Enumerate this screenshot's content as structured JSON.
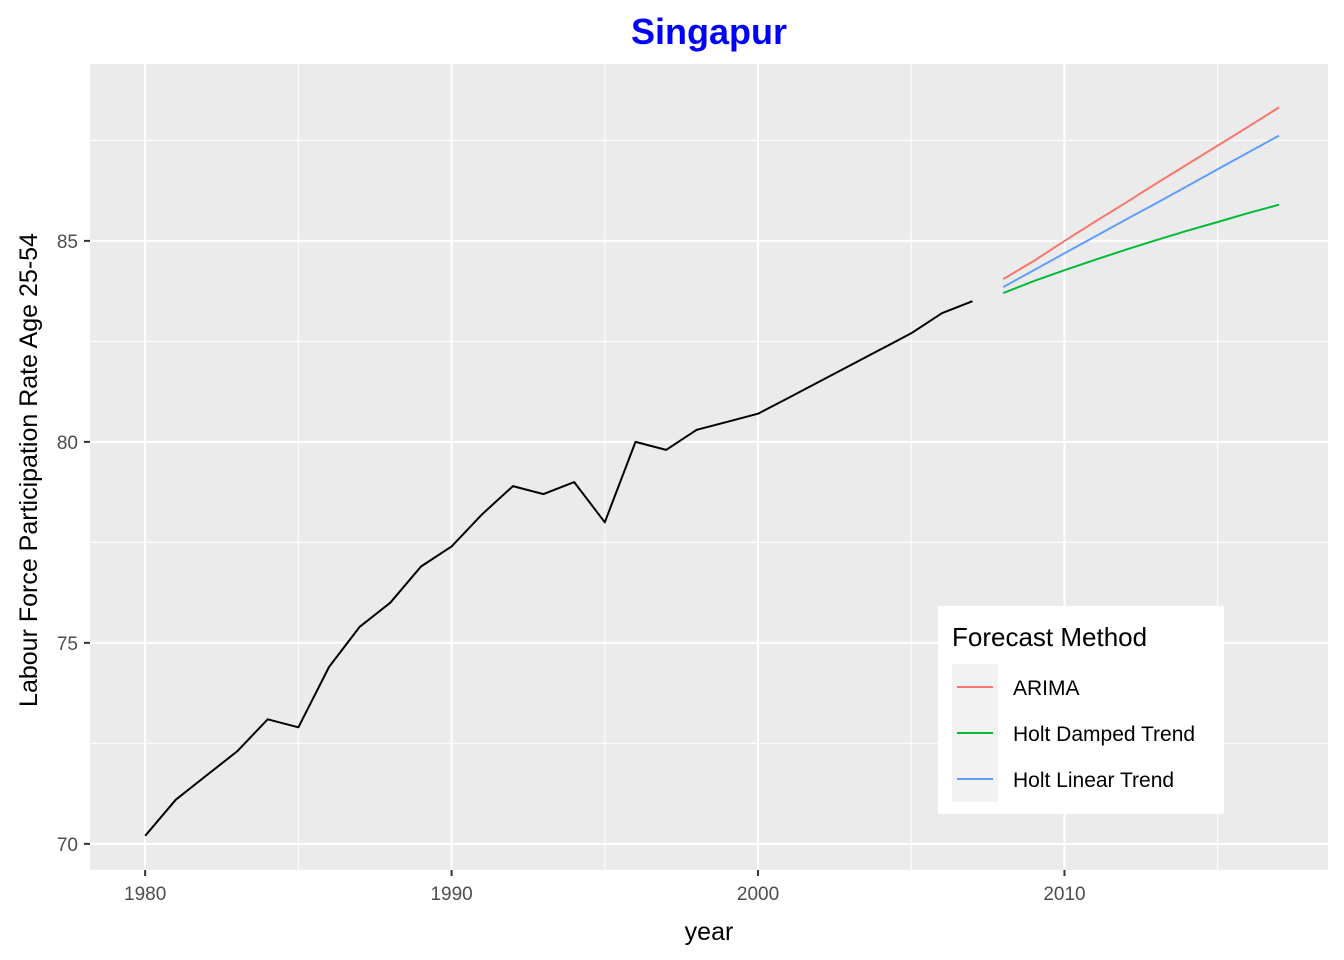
{
  "chart_data": {
    "type": "line",
    "title": "Singapur",
    "title_color": "#0000FF",
    "xlabel": "year",
    "ylabel": "Labour Force Participation Rate Age 25-54",
    "xlim": [
      1978.2,
      2018.6
    ],
    "ylim": [
      69.35,
      89.4
    ],
    "x_ticks": [
      1980,
      1990,
      2000,
      2010
    ],
    "y_ticks": [
      70,
      75,
      80,
      85
    ],
    "x_minor": [
      1985,
      1995,
      2005,
      2015
    ],
    "y_minor": [
      72.5,
      77.5,
      82.5,
      87.5
    ],
    "background": "#EBEBEB",
    "grid": true,
    "historical": {
      "color": "#000000",
      "x": [
        1980,
        1981,
        1982,
        1983,
        1984,
        1985,
        1986,
        1987,
        1988,
        1989,
        1990,
        1991,
        1992,
        1993,
        1994,
        1995,
        1996,
        1997,
        1998,
        1999,
        2000,
        2001,
        2002,
        2003,
        2004,
        2005,
        2006,
        2007
      ],
      "y": [
        70.2,
        71.1,
        71.7,
        72.3,
        73.1,
        72.9,
        74.4,
        75.4,
        76.0,
        76.9,
        77.4,
        78.2,
        78.9,
        78.7,
        79.0,
        78.0,
        80.0,
        79.8,
        80.3,
        80.5,
        80.7,
        81.1,
        81.5,
        81.9,
        82.3,
        82.7,
        83.2,
        83.5
      ]
    },
    "legend": {
      "title": "Forecast Method",
      "position": "bottom-right"
    },
    "series": [
      {
        "name": "ARIMA",
        "color": "#F8766D",
        "x": [
          2008,
          2009,
          2010,
          2011,
          2012,
          2013,
          2014,
          2015,
          2016,
          2017
        ],
        "y": [
          84.05,
          84.5,
          85.0,
          85.48,
          85.95,
          86.43,
          86.9,
          87.37,
          87.84,
          88.32
        ]
      },
      {
        "name": "Holt Damped Trend",
        "color": "#00BA38",
        "x": [
          2008,
          2009,
          2010,
          2011,
          2012,
          2013,
          2014,
          2015,
          2016,
          2017
        ],
        "y": [
          83.7,
          84.0,
          84.27,
          84.53,
          84.78,
          85.02,
          85.25,
          85.47,
          85.69,
          85.9
        ]
      },
      {
        "name": "Holt Linear Trend",
        "color": "#619CFF",
        "x": [
          2008,
          2009,
          2010,
          2011,
          2012,
          2013,
          2014,
          2015,
          2016,
          2017
        ],
        "y": [
          83.85,
          84.27,
          84.69,
          85.11,
          85.53,
          85.94,
          86.36,
          86.78,
          87.2,
          87.62
        ]
      }
    ]
  }
}
